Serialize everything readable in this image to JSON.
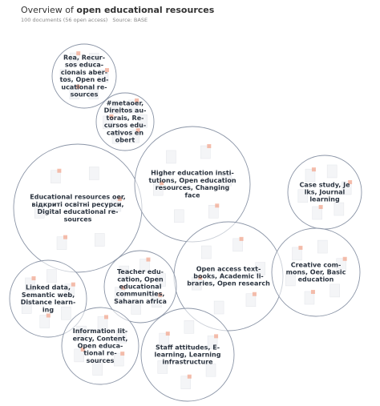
{
  "header": {
    "title_prefix": "Overview of",
    "title_topic": "open educational resources",
    "subtitle": "100 documents (56 open access)",
    "source": "Source: BASE"
  },
  "nodes": [
    {
      "label": [
        "Rea, Recur-",
        "sos educa-",
        "cionais aber-",
        "tos, Open ed-",
        "ucational re-",
        "sources"
      ]
    },
    {
      "label": [
        "#metaoer,",
        "Direitos au-",
        "torais, Re-",
        "cursos edu-",
        "cativos en",
        "obert"
      ]
    },
    {
      "label": [
        "Educational resources oer,",
        "відкриті освітні ресурси,",
        "Digital educational re-",
        "sources"
      ]
    },
    {
      "label": [
        "Higher education insti-",
        "tutions, Open education",
        "resources, Changing",
        "face"
      ]
    },
    {
      "label": [
        "Case study, Je",
        "lks, Journal",
        "learning"
      ]
    },
    {
      "label": [
        "Open access text-",
        "books, Academic li-",
        "braries, Open research"
      ]
    },
    {
      "label": [
        "Creative com-",
        "mons, Oer, Basic",
        "education"
      ]
    },
    {
      "label": [
        "Teacher edu-",
        "cation, Open",
        "educational",
        "communities,",
        "Saharan africa"
      ]
    },
    {
      "label": [
        "Linked data,",
        "Semantic web,",
        "Distance learn-",
        "ing"
      ]
    },
    {
      "label": [
        "Information lit-",
        "eracy, Content,",
        "Open educa-",
        "tional re-",
        "sources"
      ]
    },
    {
      "label": [
        "Staff attitudes, E-",
        "learning, Learning",
        "infrastructure"
      ]
    }
  ]
}
